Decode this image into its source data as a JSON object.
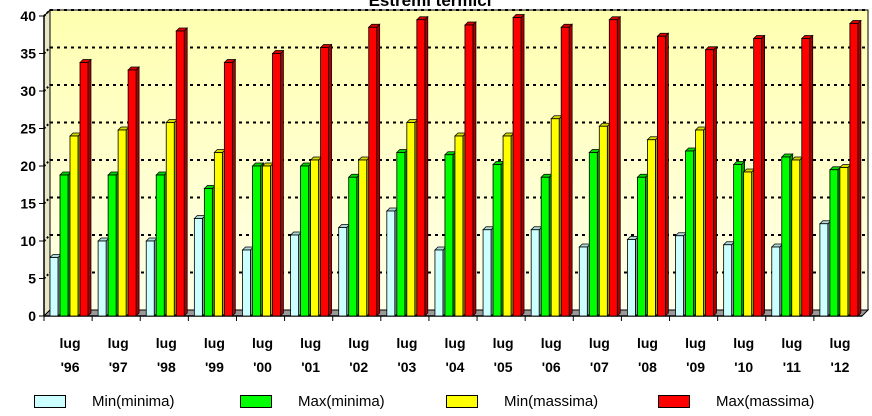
{
  "chart_data": {
    "type": "bar",
    "title": "Estremi termici",
    "categories": [
      [
        "lug",
        "'96"
      ],
      [
        "lug",
        "'97"
      ],
      [
        "lug",
        "'98"
      ],
      [
        "lug",
        "'99"
      ],
      [
        "lug",
        "'00"
      ],
      [
        "lug",
        "'01"
      ],
      [
        "lug",
        "'02"
      ],
      [
        "lug",
        "'03"
      ],
      [
        "lug",
        "'04"
      ],
      [
        "lug",
        "'05"
      ],
      [
        "lug",
        "'06"
      ],
      [
        "lug",
        "'07"
      ],
      [
        "lug",
        "'08"
      ],
      [
        "lug",
        "'09"
      ],
      [
        "lug",
        "'10"
      ],
      [
        "lug",
        "'11"
      ],
      [
        "lug",
        "'12"
      ]
    ],
    "ylim": [
      0,
      40
    ],
    "yticks": [
      0,
      5,
      10,
      15,
      20,
      25,
      30,
      35,
      40
    ],
    "grid": true,
    "legend_position": "bottom",
    "series": [
      {
        "name": "Min(minima)",
        "color": "#CCFFFF",
        "values": [
          7.8,
          10.0,
          10.0,
          13.0,
          8.8,
          10.8,
          11.8,
          14.0,
          8.8,
          11.5,
          11.5,
          9.2,
          10.2,
          10.7,
          9.5,
          9.2,
          12.3
        ]
      },
      {
        "name": "Max(minima)",
        "color": "#00FF00",
        "values": [
          18.8,
          18.8,
          18.8,
          17.0,
          20.0,
          20.0,
          18.5,
          21.8,
          21.5,
          20.2,
          18.5,
          21.8,
          18.5,
          22.0,
          20.2,
          21.2,
          19.5
        ]
      },
      {
        "name": "Min(massima)",
        "color": "#FFFF00",
        "values": [
          24.0,
          24.8,
          25.8,
          21.8,
          20.0,
          20.8,
          20.8,
          25.8,
          24.0,
          24.0,
          26.3,
          25.3,
          23.5,
          24.8,
          19.2,
          20.8,
          19.8
        ]
      },
      {
        "name": "Max(massima)",
        "color": "#FF0000",
        "values": [
          33.8,
          32.8,
          38.0,
          33.8,
          35.0,
          35.8,
          38.5,
          39.5,
          38.8,
          39.8,
          38.5,
          39.5,
          37.3,
          35.5,
          37.0,
          37.0,
          39.0
        ]
      }
    ]
  }
}
